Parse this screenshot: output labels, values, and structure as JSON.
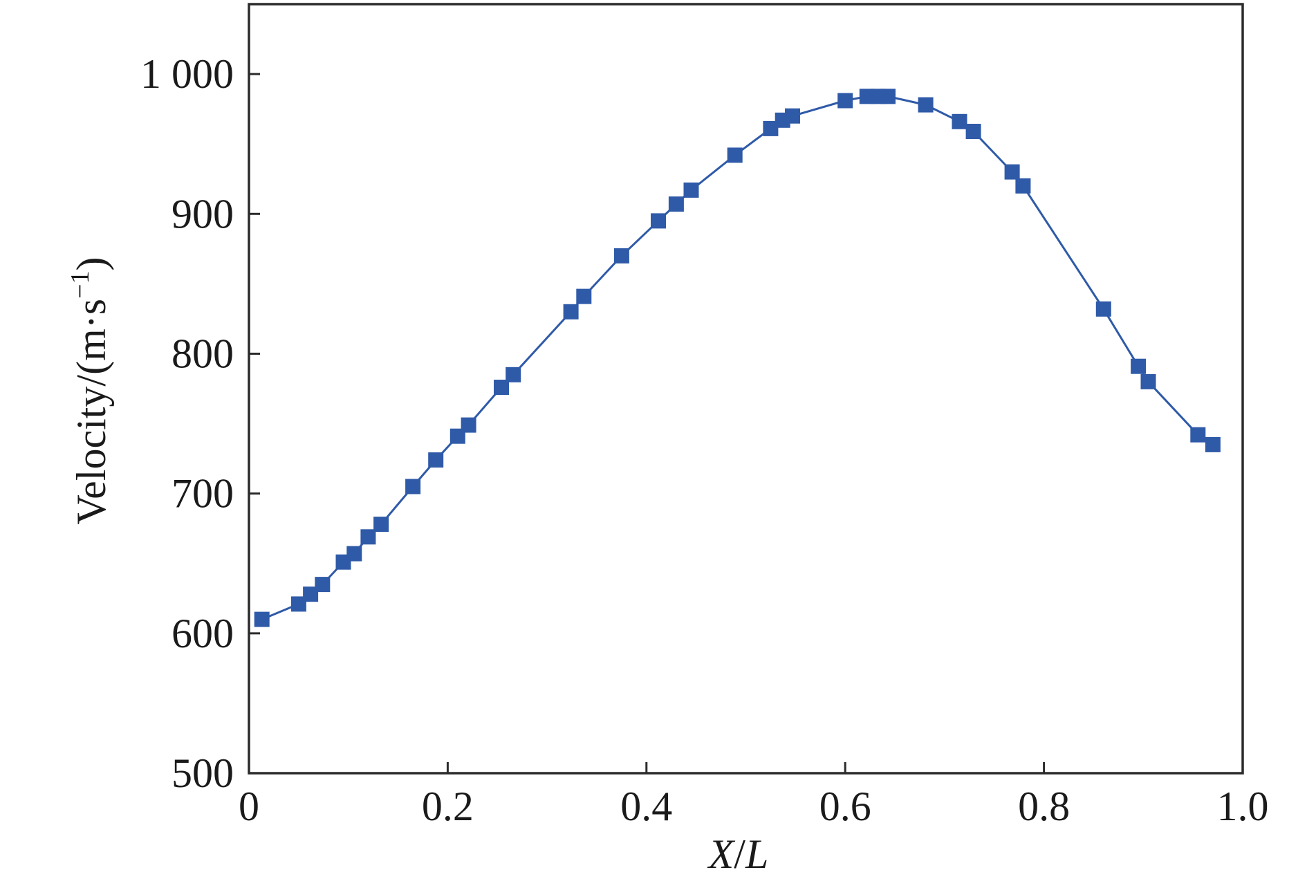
{
  "chart_data": {
    "type": "line",
    "xlabel_var1": "X",
    "xlabel_sep": "/",
    "xlabel_var2": "L",
    "ylabel_main": "Velocity/(m·s",
    "ylabel_sup": "−1",
    "ylabel_close": ")",
    "xlim": [
      0,
      1.0
    ],
    "ylim": [
      500,
      1050
    ],
    "xticks": [
      0,
      0.2,
      0.4,
      0.6,
      0.8,
      1.0
    ],
    "xtick_labels": [
      "0",
      "0.2",
      "0.4",
      "0.6",
      "0.8",
      "1.0"
    ],
    "yticks": [
      500,
      600,
      700,
      800,
      900,
      1000
    ],
    "ytick_labels": [
      "500",
      "600",
      "700",
      "800",
      "900",
      "1 000"
    ],
    "grid": false,
    "series_color": "#2f5aa8",
    "marker": "square",
    "series": [
      {
        "x": [
          0.013,
          0.05,
          0.062,
          0.074,
          0.095,
          0.106,
          0.12,
          0.133,
          0.165,
          0.188,
          0.21,
          0.221,
          0.254,
          0.266,
          0.324,
          0.337,
          0.375,
          0.412,
          0.43,
          0.445,
          0.489,
          0.525,
          0.537,
          0.547,
          0.6,
          0.622,
          0.633,
          0.643,
          0.681,
          0.715,
          0.729,
          0.768,
          0.779,
          0.86,
          0.895,
          0.905,
          0.955,
          0.97
        ],
        "y": [
          610,
          621,
          628,
          635,
          651,
          657,
          669,
          678,
          705,
          724,
          741,
          749,
          776,
          785,
          830,
          841,
          870,
          895,
          907,
          917,
          942,
          961,
          967,
          970,
          981,
          984,
          984,
          984,
          978,
          966,
          959,
          930,
          920,
          832,
          791,
          780,
          742,
          735
        ]
      }
    ]
  }
}
